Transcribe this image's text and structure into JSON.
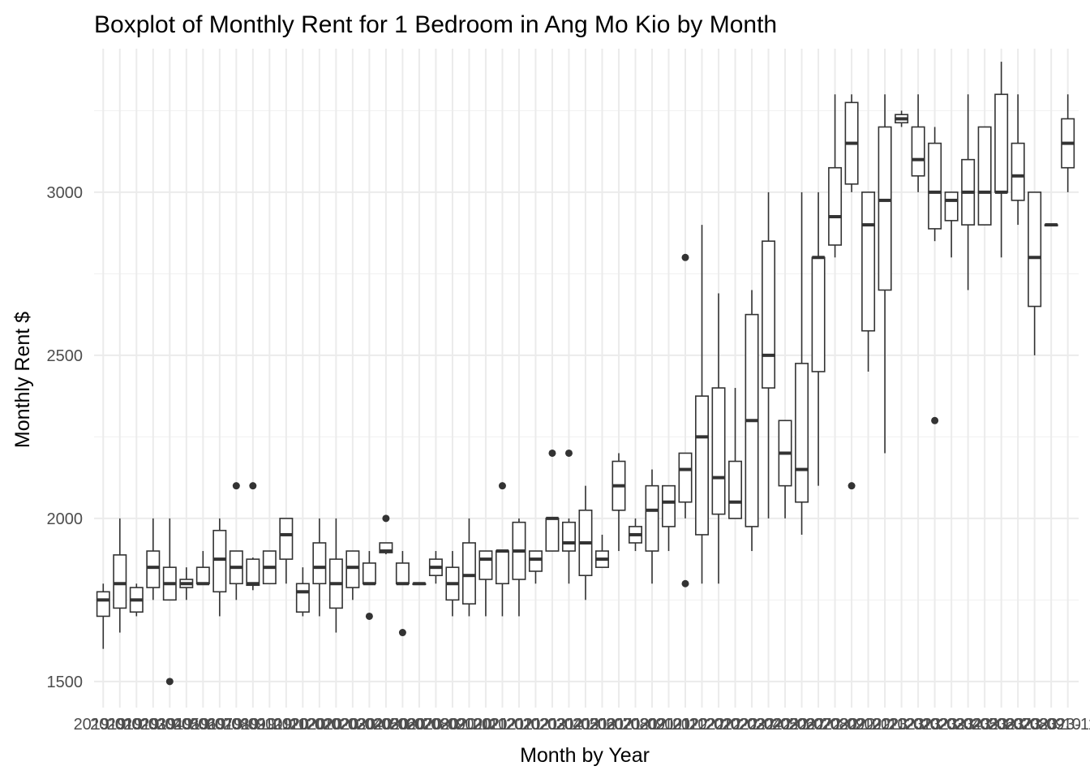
{
  "chart_data": {
    "type": "boxplot",
    "title": "Boxplot of Monthly Rent for 1 Bedroom in Ang Mo Kio by Month",
    "xlabel": "Month by Year",
    "ylabel": "Monthly Rent $",
    "ylim": [
      1420,
      3440
    ],
    "yticks": [
      1500,
      2000,
      2500,
      3000
    ],
    "grid": true,
    "x_tick_labels_overlapping": "2019-01 ... 2024-12 (illegible, overlapping)",
    "boxes": [
      {
        "min": 1600,
        "q1": 1700,
        "median": 1750,
        "q3": 1775,
        "max": 1800,
        "outliers": []
      },
      {
        "min": 1650,
        "q1": 1725,
        "median": 1800,
        "q3": 1888,
        "max": 2000,
        "outliers": []
      },
      {
        "min": 1700,
        "q1": 1713,
        "median": 1750,
        "q3": 1788,
        "max": 1800,
        "outliers": []
      },
      {
        "min": 1750,
        "q1": 1788,
        "median": 1850,
        "q3": 1900,
        "max": 2000,
        "outliers": []
      },
      {
        "min": 1750,
        "q1": 1750,
        "median": 1800,
        "q3": 1850,
        "max": 2000,
        "outliers": [
          1500
        ]
      },
      {
        "min": 1750,
        "q1": 1788,
        "median": 1800,
        "q3": 1813,
        "max": 1850,
        "outliers": []
      },
      {
        "min": 1800,
        "q1": 1800,
        "median": 1800,
        "q3": 1850,
        "max": 1900,
        "outliers": []
      },
      {
        "min": 1700,
        "q1": 1775,
        "median": 1875,
        "q3": 1963,
        "max": 2000,
        "outliers": []
      },
      {
        "min": 1750,
        "q1": 1800,
        "median": 1850,
        "q3": 1900,
        "max": 1900,
        "outliers": [
          2100
        ]
      },
      {
        "min": 1780,
        "q1": 1795,
        "median": 1800,
        "q3": 1875,
        "max": 1880,
        "outliers": [
          2100
        ]
      },
      {
        "min": 1800,
        "q1": 1800,
        "median": 1850,
        "q3": 1900,
        "max": 1900,
        "outliers": []
      },
      {
        "min": 1800,
        "q1": 1875,
        "median": 1950,
        "q3": 2000,
        "max": 2000,
        "outliers": []
      },
      {
        "min": 1700,
        "q1": 1713,
        "median": 1775,
        "q3": 1800,
        "max": 1850,
        "outliers": []
      },
      {
        "min": 1700,
        "q1": 1800,
        "median": 1850,
        "q3": 1925,
        "max": 2000,
        "outliers": []
      },
      {
        "min": 1650,
        "q1": 1725,
        "median": 1800,
        "q3": 1875,
        "max": 2000,
        "outliers": []
      },
      {
        "min": 1750,
        "q1": 1788,
        "median": 1850,
        "q3": 1900,
        "max": 1900,
        "outliers": []
      },
      {
        "min": 1800,
        "q1": 1800,
        "median": 1800,
        "q3": 1863,
        "max": 1900,
        "outliers": [
          1700
        ]
      },
      {
        "min": 1890,
        "q1": 1895,
        "median": 1900,
        "q3": 1925,
        "max": 1925,
        "outliers": [
          2000
        ]
      },
      {
        "min": 1800,
        "q1": 1800,
        "median": 1800,
        "q3": 1863,
        "max": 1900,
        "outliers": [
          1650
        ]
      },
      {
        "min": 1800,
        "q1": 1800,
        "median": 1800,
        "q3": 1800,
        "max": 1800,
        "outliers": []
      },
      {
        "min": 1800,
        "q1": 1825,
        "median": 1850,
        "q3": 1875,
        "max": 1900,
        "outliers": []
      },
      {
        "min": 1700,
        "q1": 1750,
        "median": 1800,
        "q3": 1850,
        "max": 1900,
        "outliers": []
      },
      {
        "min": 1700,
        "q1": 1738,
        "median": 1825,
        "q3": 1925,
        "max": 2000,
        "outliers": []
      },
      {
        "min": 1700,
        "q1": 1813,
        "median": 1875,
        "q3": 1900,
        "max": 1900,
        "outliers": []
      },
      {
        "min": 1700,
        "q1": 1800,
        "median": 1900,
        "q3": 1900,
        "max": 1900,
        "outliers": [
          2100
        ]
      },
      {
        "min": 1700,
        "q1": 1813,
        "median": 1900,
        "q3": 1988,
        "max": 2000,
        "outliers": []
      },
      {
        "min": 1800,
        "q1": 1838,
        "median": 1875,
        "q3": 1900,
        "max": 1900,
        "outliers": []
      },
      {
        "min": 1900,
        "q1": 1900,
        "median": 2000,
        "q3": 2000,
        "max": 2000,
        "outliers": [
          2200
        ]
      },
      {
        "min": 1800,
        "q1": 1900,
        "median": 1925,
        "q3": 1988,
        "max": 2000,
        "outliers": [
          2200
        ]
      },
      {
        "min": 1750,
        "q1": 1825,
        "median": 1925,
        "q3": 2025,
        "max": 2100,
        "outliers": []
      },
      {
        "min": 1850,
        "q1": 1850,
        "median": 1875,
        "q3": 1900,
        "max": 1950,
        "outliers": []
      },
      {
        "min": 1900,
        "q1": 2025,
        "median": 2100,
        "q3": 2175,
        "max": 2200,
        "outliers": []
      },
      {
        "min": 1900,
        "q1": 1925,
        "median": 1950,
        "q3": 1975,
        "max": 2000,
        "outliers": []
      },
      {
        "min": 1800,
        "q1": 1900,
        "median": 2025,
        "q3": 2100,
        "max": 2150,
        "outliers": []
      },
      {
        "min": 1900,
        "q1": 1975,
        "median": 2050,
        "q3": 2100,
        "max": 2100,
        "outliers": []
      },
      {
        "min": 2000,
        "q1": 2050,
        "median": 2150,
        "q3": 2200,
        "max": 2200,
        "outliers": [
          1800,
          2800
        ]
      },
      {
        "min": 1800,
        "q1": 1950,
        "median": 2250,
        "q3": 2375,
        "max": 2900,
        "outliers": []
      },
      {
        "min": 1800,
        "q1": 2013,
        "median": 2125,
        "q3": 2400,
        "max": 2690,
        "outliers": []
      },
      {
        "min": 2000,
        "q1": 2000,
        "median": 2050,
        "q3": 2175,
        "max": 2400,
        "outliers": []
      },
      {
        "min": 1900,
        "q1": 1975,
        "median": 2300,
        "q3": 2625,
        "max": 2700,
        "outliers": []
      },
      {
        "min": 2000,
        "q1": 2400,
        "median": 2500,
        "q3": 2850,
        "max": 3000,
        "outliers": []
      },
      {
        "min": 2000,
        "q1": 2100,
        "median": 2200,
        "q3": 2300,
        "max": 2300,
        "outliers": []
      },
      {
        "min": 1950,
        "q1": 2050,
        "median": 2150,
        "q3": 2475,
        "max": 3000,
        "outliers": []
      },
      {
        "min": 2100,
        "q1": 2450,
        "median": 2800,
        "q3": 2800,
        "max": 3000,
        "outliers": []
      },
      {
        "min": 2800,
        "q1": 2838,
        "median": 2925,
        "q3": 3075,
        "max": 3300,
        "outliers": []
      },
      {
        "min": 3000,
        "q1": 3025,
        "median": 3150,
        "q3": 3275,
        "max": 3300,
        "outliers": [
          2100
        ]
      },
      {
        "min": 2450,
        "q1": 2575,
        "median": 2900,
        "q3": 3000,
        "max": 3000,
        "outliers": []
      },
      {
        "min": 2200,
        "q1": 2700,
        "median": 2975,
        "q3": 3200,
        "max": 3300,
        "outliers": []
      },
      {
        "min": 3200,
        "q1": 3213,
        "median": 3225,
        "q3": 3238,
        "max": 3250,
        "outliers": []
      },
      {
        "min": 3000,
        "q1": 3050,
        "median": 3100,
        "q3": 3200,
        "max": 3300,
        "outliers": []
      },
      {
        "min": 2850,
        "q1": 2888,
        "median": 3000,
        "q3": 3150,
        "max": 3200,
        "outliers": [
          2300
        ]
      },
      {
        "min": 2800,
        "q1": 2913,
        "median": 2975,
        "q3": 3000,
        "max": 3000,
        "outliers": []
      },
      {
        "min": 2700,
        "q1": 2900,
        "median": 3000,
        "q3": 3100,
        "max": 3300,
        "outliers": []
      },
      {
        "min": 2900,
        "q1": 2900,
        "median": 3000,
        "q3": 3200,
        "max": 3200,
        "outliers": []
      },
      {
        "min": 2800,
        "q1": 3000,
        "median": 3000,
        "q3": 3300,
        "max": 3400,
        "outliers": []
      },
      {
        "min": 2900,
        "q1": 2975,
        "median": 3050,
        "q3": 3150,
        "max": 3300,
        "outliers": []
      },
      {
        "min": 2500,
        "q1": 2650,
        "median": 2800,
        "q3": 3000,
        "max": 3000,
        "outliers": []
      },
      {
        "min": 2900,
        "q1": 2900,
        "median": 2900,
        "q3": 2900,
        "max": 2900,
        "outliers": []
      },
      {
        "min": 3000,
        "q1": 3075,
        "median": 3150,
        "q3": 3225,
        "max": 3300,
        "outliers": []
      }
    ]
  }
}
